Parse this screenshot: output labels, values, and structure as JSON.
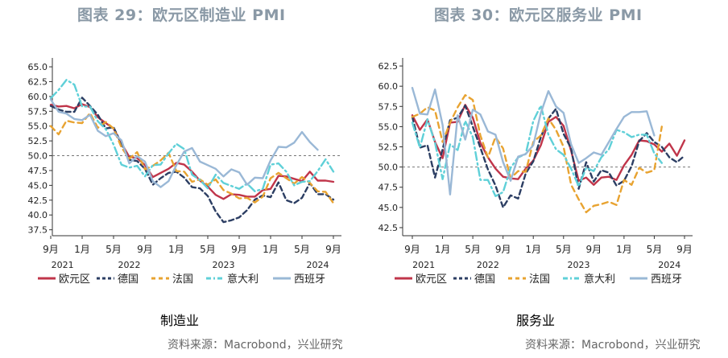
{
  "chart_data": [
    {
      "type": "line",
      "title": "图表 29：欧元区制造业 PMI",
      "subtitle": "制造业",
      "source": "资料来源：Macrobond，兴业研究",
      "ylim": [
        36.5,
        66.5
      ],
      "yticks": [
        "65.0",
        "62.5",
        "60.0",
        "57.5",
        "55.0",
        "52.5",
        "50.0",
        "47.5",
        "45.0",
        "42.5",
        "40.0",
        "37.5"
      ],
      "reference_line": 50,
      "x_start": "2021-09",
      "x_ticks": [
        {
          "i": 0,
          "label": "9月"
        },
        {
          "i": 4,
          "label": "1月"
        },
        {
          "i": 8,
          "label": "5月"
        },
        {
          "i": 12,
          "label": "9月"
        },
        {
          "i": 16,
          "label": "1月"
        },
        {
          "i": 20,
          "label": "5月"
        },
        {
          "i": 24,
          "label": "9月"
        },
        {
          "i": 28,
          "label": "1月"
        },
        {
          "i": 32,
          "label": "5月"
        },
        {
          "i": 36,
          "label": "9月"
        }
      ],
      "year_labels": [
        {
          "i": 1.5,
          "label": "2021"
        },
        {
          "i": 10,
          "label": "2022"
        },
        {
          "i": 22,
          "label": "2023"
        },
        {
          "i": 34,
          "label": "2024"
        }
      ],
      "series": [
        {
          "name": "欧元区",
          "color": "#c0354a",
          "dash": "",
          "values": [
            58.6,
            58.3,
            58.4,
            58.0,
            58.7,
            58.2,
            56.5,
            55.5,
            54.6,
            52.1,
            49.8,
            49.6,
            48.4,
            46.4,
            47.1,
            47.8,
            48.8,
            48.5,
            47.3,
            45.8,
            44.8,
            43.4,
            42.7,
            43.5,
            43.4,
            43.1,
            43.1,
            44.2,
            44.4,
            46.6,
            46.5,
            46.1,
            45.7,
            47.3,
            45.8,
            45.8,
            45.6
          ],
          "value_labels": []
        },
        {
          "name": "德国",
          "color": "#2c3e63",
          "dash": "6,4",
          "values": [
            58.4,
            57.8,
            57.4,
            57.4,
            59.8,
            58.4,
            56.9,
            54.6,
            54.8,
            52.0,
            49.3,
            49.1,
            47.8,
            45.1,
            46.2,
            47.1,
            47.3,
            46.3,
            44.7,
            44.5,
            43.2,
            40.6,
            38.8,
            39.1,
            39.6,
            40.8,
            42.6,
            43.3,
            43.0,
            45.5,
            42.5,
            42.0,
            42.9,
            45.4,
            43.5,
            43.5,
            42.6
          ],
          "value_labels": []
        },
        {
          "name": "法国",
          "color": "#e8a331",
          "dash": "7,5",
          "values": [
            55.0,
            53.6,
            55.9,
            55.6,
            55.5,
            57.2,
            54.7,
            55.7,
            54.6,
            51.4,
            49.5,
            50.6,
            47.7,
            48.3,
            49.2,
            50.5,
            47.4,
            47.3,
            45.6,
            46.0,
            45.1,
            46.0,
            44.2,
            43.6,
            42.8,
            42.9,
            42.1,
            43.1,
            46.2,
            47.1,
            46.2,
            45.3,
            46.4,
            45.4,
            44.0,
            43.9,
            42.0
          ],
          "value_labels": []
        },
        {
          "name": "意大利",
          "color": "#5fd0d8",
          "dash": "10,4,2,4",
          "values": [
            59.7,
            61.1,
            62.8,
            62.0,
            58.3,
            58.3,
            55.8,
            54.5,
            51.9,
            48.5,
            48.0,
            48.3,
            46.5,
            48.4,
            48.5,
            50.4,
            52.0,
            51.1,
            46.8,
            45.9,
            44.5,
            46.8,
            45.4,
            44.9,
            44.4,
            45.3,
            44.0,
            44.4,
            48.5,
            48.7,
            47.3,
            45.0,
            45.6,
            45.7,
            47.4,
            49.4,
            47.3
          ],
          "value_labels": []
        },
        {
          "name": "西班牙",
          "color": "#9ab8d6",
          "dash": "",
          "values": [
            59.5,
            57.4,
            57.1,
            56.2,
            56.0,
            56.9,
            54.2,
            53.3,
            53.8,
            52.6,
            48.7,
            49.9,
            49.0,
            45.7,
            44.7,
            45.7,
            48.4,
            50.7,
            51.3,
            49.0,
            48.4,
            47.8,
            46.5,
            47.7,
            47.2,
            45.1,
            46.3,
            46.2,
            49.2,
            51.5,
            51.4,
            52.2,
            54.0,
            52.3,
            51.0
          ]
        }
      ]
    },
    {
      "type": "line",
      "title": "图表 30：欧元区服务业 PMI",
      "subtitle": "服务业",
      "source": "资料来源：Macrobond，兴业研究",
      "ylim": [
        41.5,
        63.5
      ],
      "yticks": [
        "62.5",
        "60.0",
        "57.5",
        "55.0",
        "52.5",
        "50.0",
        "47.5",
        "45.0",
        "42.5"
      ],
      "reference_line": 50,
      "x_start": "2021-09",
      "x_ticks": [
        {
          "i": 0,
          "label": "9月"
        },
        {
          "i": 4,
          "label": "1月"
        },
        {
          "i": 8,
          "label": "5月"
        },
        {
          "i": 12,
          "label": "9月"
        },
        {
          "i": 16,
          "label": "1月"
        },
        {
          "i": 20,
          "label": "5月"
        },
        {
          "i": 24,
          "label": "9月"
        },
        {
          "i": 28,
          "label": "1月"
        },
        {
          "i": 32,
          "label": "5月"
        },
        {
          "i": 36,
          "label": "9月"
        }
      ],
      "year_labels": [
        {
          "i": 1.5,
          "label": "2021"
        },
        {
          "i": 10,
          "label": "2022"
        },
        {
          "i": 22,
          "label": "2023"
        },
        {
          "i": 34,
          "label": "2024"
        }
      ],
      "series": [
        {
          "name": "欧元区",
          "color": "#c0354a",
          "dash": "",
          "values": [
            56.4,
            54.6,
            55.9,
            53.1,
            51.1,
            55.5,
            55.6,
            57.7,
            56.1,
            53.0,
            51.2,
            49.8,
            48.8,
            48.6,
            48.5,
            49.8,
            50.8,
            52.7,
            55.6,
            56.2,
            55.1,
            52.0,
            48.3,
            48.7,
            47.8,
            48.7,
            48.8,
            48.4,
            50.2,
            51.5,
            53.3,
            53.2,
            52.8,
            51.9,
            52.9,
            51.4,
            53.3
          ]
        },
        {
          "name": "德国",
          "color": "#2c3e63",
          "dash": "6,4",
          "values": [
            56.2,
            52.4,
            52.7,
            48.7,
            52.2,
            55.8,
            56.1,
            57.6,
            55.0,
            52.4,
            49.7,
            47.7,
            45.0,
            46.5,
            46.1,
            49.2,
            50.7,
            53.7,
            56.0,
            57.2,
            54.1,
            52.3,
            47.3,
            50.6,
            48.2,
            49.6,
            49.3,
            47.7,
            48.3,
            50.1,
            53.2,
            54.2,
            53.1,
            52.5,
            51.2,
            50.6,
            51.4
          ]
        },
        {
          "name": "法国",
          "color": "#e8a331",
          "dash": "7,5",
          "values": [
            56.2,
            56.6,
            57.4,
            57.0,
            53.1,
            55.5,
            57.4,
            58.9,
            58.3,
            53.9,
            51.2,
            53.7,
            52.3,
            48.6,
            49.5,
            49.4,
            53.1,
            53.9,
            56.0,
            54.6,
            52.5,
            47.8,
            46.0,
            44.4,
            45.2,
            45.4,
            45.7,
            45.3,
            48.4,
            47.8,
            49.9,
            49.3,
            49.6,
            55.0
          ]
        },
        {
          "name": "意大利",
          "color": "#5fd0d8",
          "dash": "10,4,2,4",
          "values": [
            55.5,
            52.4,
            55.9,
            53.0,
            48.5,
            52.8,
            52.1,
            55.7,
            53.7,
            48.4,
            48.4,
            46.4,
            46.9,
            49.9,
            51.2,
            51.6,
            55.7,
            57.6,
            54.0,
            52.2,
            51.5,
            49.8,
            47.6,
            49.9,
            49.5,
            51.2,
            52.2,
            54.6,
            54.3,
            53.7,
            54.0,
            54.0,
            51.7,
            50.5
          ]
        },
        {
          "name": "西班牙",
          "color": "#9ab8d6",
          "dash": "",
          "values": [
            59.8,
            56.6,
            56.5,
            59.6,
            55.2,
            46.6,
            56.4,
            53.4,
            57.1,
            56.5,
            54.4,
            54.0,
            50.6,
            48.3,
            51.3,
            51.6,
            52.7,
            56.7,
            59.4,
            57.5,
            56.7,
            52.8,
            50.5,
            51.1,
            51.8,
            51.5,
            53.1,
            54.7,
            56.2,
            56.8,
            56.8,
            56.9,
            53.9
          ]
        }
      ]
    }
  ]
}
